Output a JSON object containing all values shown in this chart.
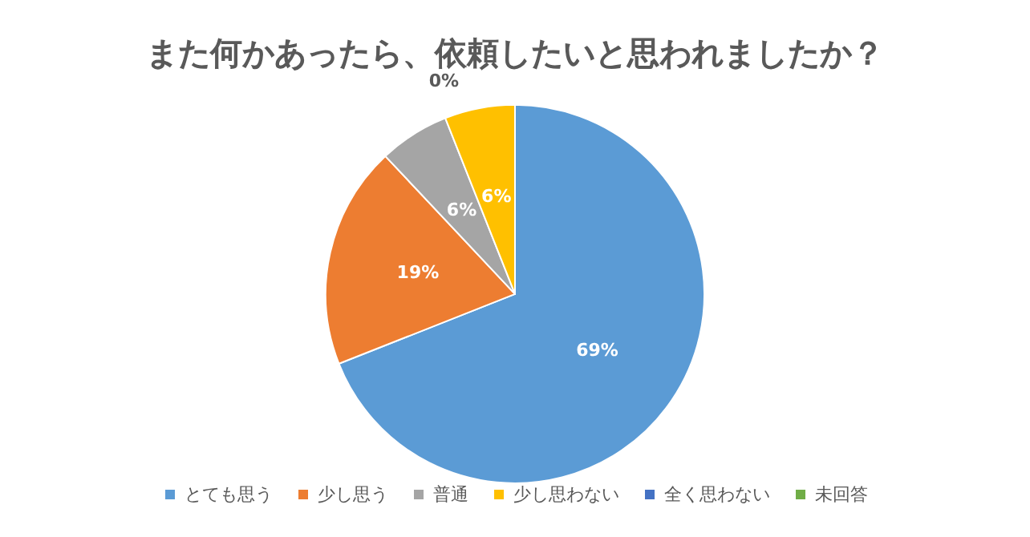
{
  "chart_data": {
    "type": "pie",
    "title": "また何かあったら、依頼したいと思われましたか？",
    "categories": [
      "とても思う",
      "少し思う",
      "普通",
      "少し思わない",
      "全く思わない",
      "未回答"
    ],
    "values": [
      69,
      19,
      6,
      6,
      0,
      0
    ],
    "colors": [
      "#5b9bd5",
      "#ed7d31",
      "#a5a5a5",
      "#ffc000",
      "#4472c4",
      "#70ad47"
    ],
    "value_labels": [
      "69%",
      "19%",
      "6%",
      "6%",
      "0%",
      null
    ],
    "legend": "bottom"
  }
}
